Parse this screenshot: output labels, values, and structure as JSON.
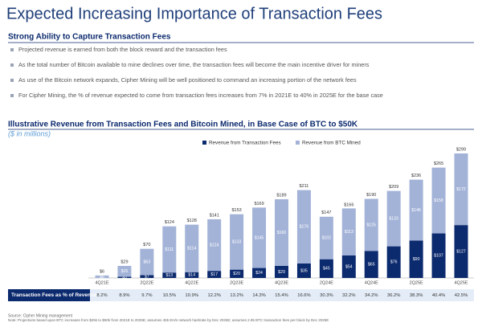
{
  "header": {
    "title": "Expected Increasing Importance of Transaction Fees"
  },
  "section": {
    "title": "Strong Ability to Capture Transaction Fees",
    "bullets": [
      "Projected revenue is earned from both the block reward and the transaction fees",
      "As the total number of Bitcoin available to mine declines over time, the transaction fees will become the main incentive driver for miners",
      "As use of the Bitcoin network expands, Cipher Mining will be well positioned to command an increasing portion of the network fees",
      "For Cipher Mining, the % of revenue expected to come from transaction fees increases from 7% in 2021E to 40% in 2025E for the base case"
    ]
  },
  "chart_data": {
    "type": "bar",
    "stacked": true,
    "title": "Illustrative Revenue from Transaction Fees and Bitcoin Mined, in Base Case of BTC to $50K",
    "subtitle": "($ in millions)",
    "categories": [
      "4Q21E",
      null,
      "2Q22E",
      null,
      "4Q22E",
      null,
      "2Q23E",
      null,
      "4Q23E",
      null,
      "2Q24E",
      null,
      "4Q24E",
      null,
      "2Q25E",
      null,
      "4Q25E"
    ],
    "series": [
      {
        "name": "Revenue from Transaction Fees",
        "color": "#0c2a6e",
        "values": [
          0,
          3,
          7,
          13,
          14,
          17,
          20,
          24,
          29,
          35,
          45,
          54,
          65,
          76,
          90,
          107,
          127
        ],
        "value_labels": [
          "$0",
          "$3",
          "$7",
          "$13",
          "$14",
          "$17",
          "$20",
          "$24",
          "$29",
          "$35",
          "$45",
          "$54",
          "$65",
          "$76",
          "$90",
          "$107",
          "$127"
        ]
      },
      {
        "name": "Revenue from BTC Mined",
        "color": "#a3b3d8",
        "values": [
          6,
          26,
          63,
          111,
          114,
          124,
          133,
          145,
          160,
          176,
          102,
          113,
          125,
          133,
          146,
          158,
          172
        ],
        "value_labels": [
          "$6",
          "$26",
          "$63",
          "$111",
          "$114",
          "$124",
          "$133",
          "$145",
          "$160",
          "$176",
          "$102",
          "$113",
          "$125",
          "$133",
          "$146",
          "$158",
          "$172"
        ]
      }
    ],
    "totals": [
      6,
      29,
      70,
      124,
      128,
      141,
      153,
      169,
      189,
      211,
      147,
      166,
      190,
      209,
      236,
      265,
      299
    ],
    "total_labels": [
      "$6",
      "$29",
      "$70",
      "$124",
      "$128",
      "$141",
      "$153",
      "$169",
      "$189",
      "$211",
      "$147",
      "$166",
      "$190",
      "$209",
      "$236",
      "$265",
      "$299"
    ],
    "table": {
      "label": "Transaction Fees as % of Revenue",
      "values": [
        8.2,
        8.9,
        9.7,
        10.5,
        10.9,
        12.2,
        13.2,
        14.3,
        15.4,
        16.6,
        30.3,
        32.2,
        34.2,
        36.2,
        38.3,
        40.4,
        42.5
      ],
      "value_labels": [
        "8.2%",
        "8.9%",
        "9.7%",
        "10.5%",
        "10.9%",
        "12.2%",
        "13.2%",
        "14.3%",
        "15.4%",
        "16.6%",
        "30.3%",
        "32.2%",
        "34.2%",
        "36.2%",
        "38.3%",
        "40.4%",
        "42.5%"
      ]
    }
  },
  "footer": {
    "source": "Source: Cipher Mining management",
    "note": "Note: Projections based upon BTC increases from $25k to $50k from 2021E to 2025E; assumes 455 EH/s network hashrate by Dec 2025E; assumes 2.95 BTC transaction fees per block by Dec 2025E"
  }
}
